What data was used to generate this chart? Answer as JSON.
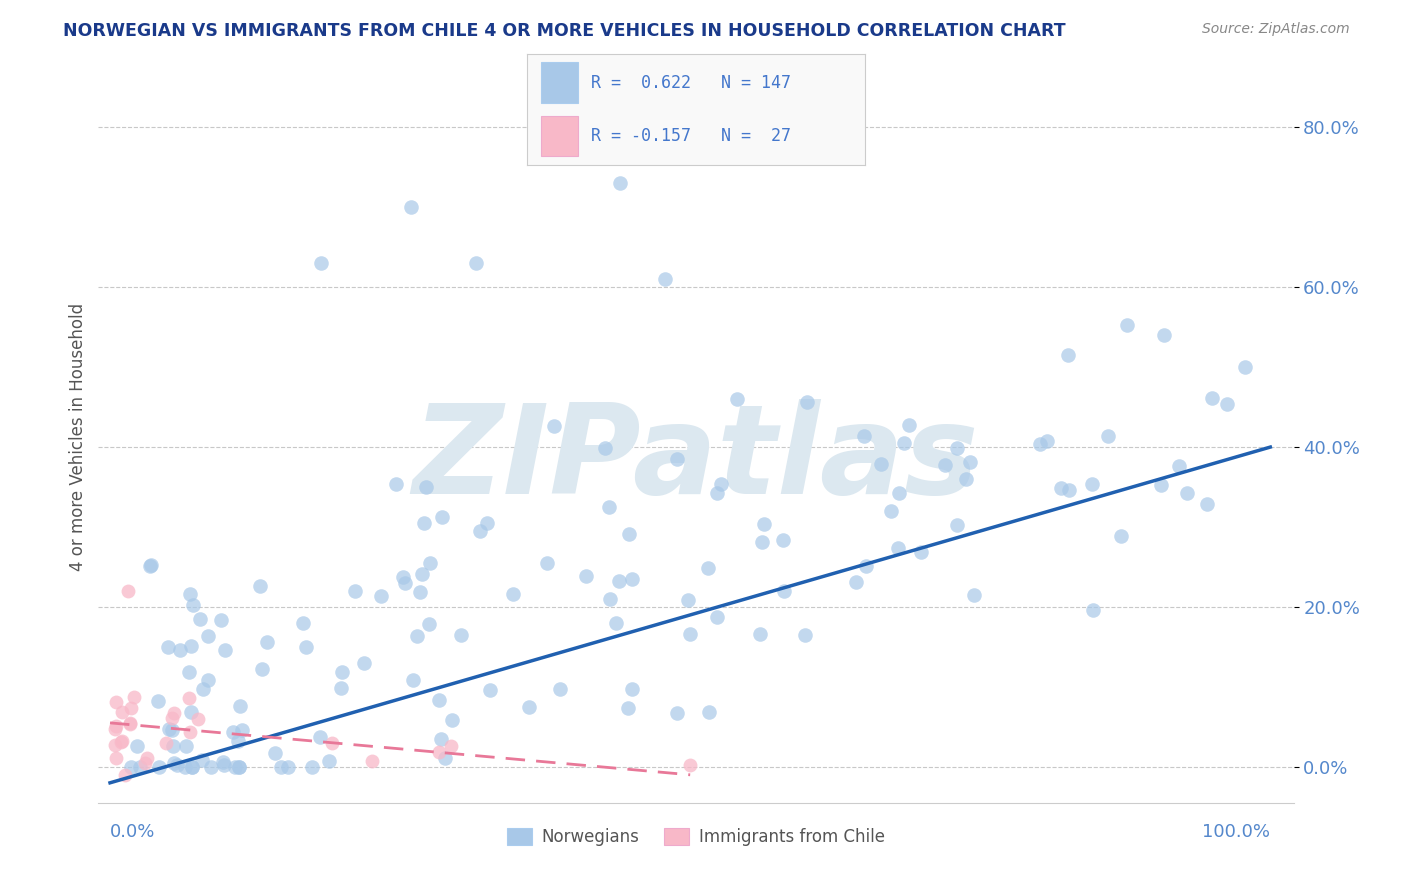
{
  "title": "NORWEGIAN VS IMMIGRANTS FROM CHILE 4 OR MORE VEHICLES IN HOUSEHOLD CORRELATION CHART",
  "source": "Source: ZipAtlas.com",
  "ylabel": "4 or more Vehicles in Household",
  "ytick_labels": [
    "0.0%",
    "20.0%",
    "40.0%",
    "60.0%",
    "80.0%"
  ],
  "ytick_values": [
    0.0,
    0.2,
    0.4,
    0.6,
    0.8
  ],
  "xlim": [
    -0.01,
    1.02
  ],
  "ylim": [
    -0.045,
    0.87
  ],
  "watermark": "ZIPatlas",
  "background_color": "#ffffff",
  "grid_color": "#c8c8c8",
  "blue_scatter_color": "#a8c8e8",
  "blue_line_color": "#2060b0",
  "pink_scatter_color": "#f8b8c8",
  "pink_line_color": "#e87898",
  "title_color": "#1a3a8a",
  "source_color": "#888888",
  "axis_tick_color": "#5588cc",
  "ylabel_color": "#555555",
  "watermark_color": "#dce8f0",
  "legend_text_color": "#4477cc",
  "legend_bg": "#f9f9f9",
  "legend_border": "#cccccc",
  "blue_r": 0.622,
  "blue_n": 147,
  "pink_r": -0.157,
  "pink_n": 27,
  "blue_line_x0": 0.0,
  "blue_line_x1": 1.0,
  "blue_line_y0": -0.02,
  "blue_line_y1": 0.4,
  "pink_line_x0": 0.0,
  "pink_line_x1": 0.5,
  "pink_line_y0": 0.055,
  "pink_line_y1": -0.01
}
